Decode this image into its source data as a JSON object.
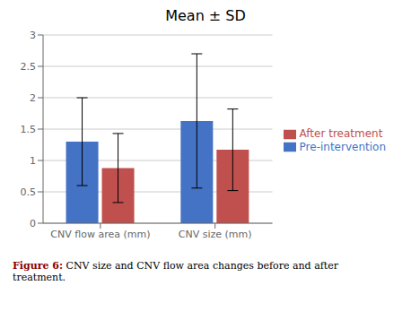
{
  "chart_data": {
    "type": "bar",
    "title": "Mean ± SD",
    "categories": [
      "CNV flow area (mm)",
      "CNV size (mm)"
    ],
    "series": [
      {
        "name": "Pre-intervention",
        "color": "#4472C4",
        "values": [
          1.3,
          1.63
        ],
        "errors": [
          0.7,
          1.07
        ]
      },
      {
        "name": "After treatment",
        "color": "#C0504D",
        "values": [
          0.88,
          1.17
        ],
        "errors": [
          0.55,
          0.65
        ]
      }
    ],
    "ylim": [
      0,
      3
    ],
    "yticks": [
      0,
      0.5,
      1,
      1.5,
      2,
      2.5,
      3
    ],
    "grid": true,
    "legend": "right",
    "annotations": [
      "Figure 6:",
      "CNV size and CNV flow area changes before and after",
      "treatment."
    ]
  }
}
